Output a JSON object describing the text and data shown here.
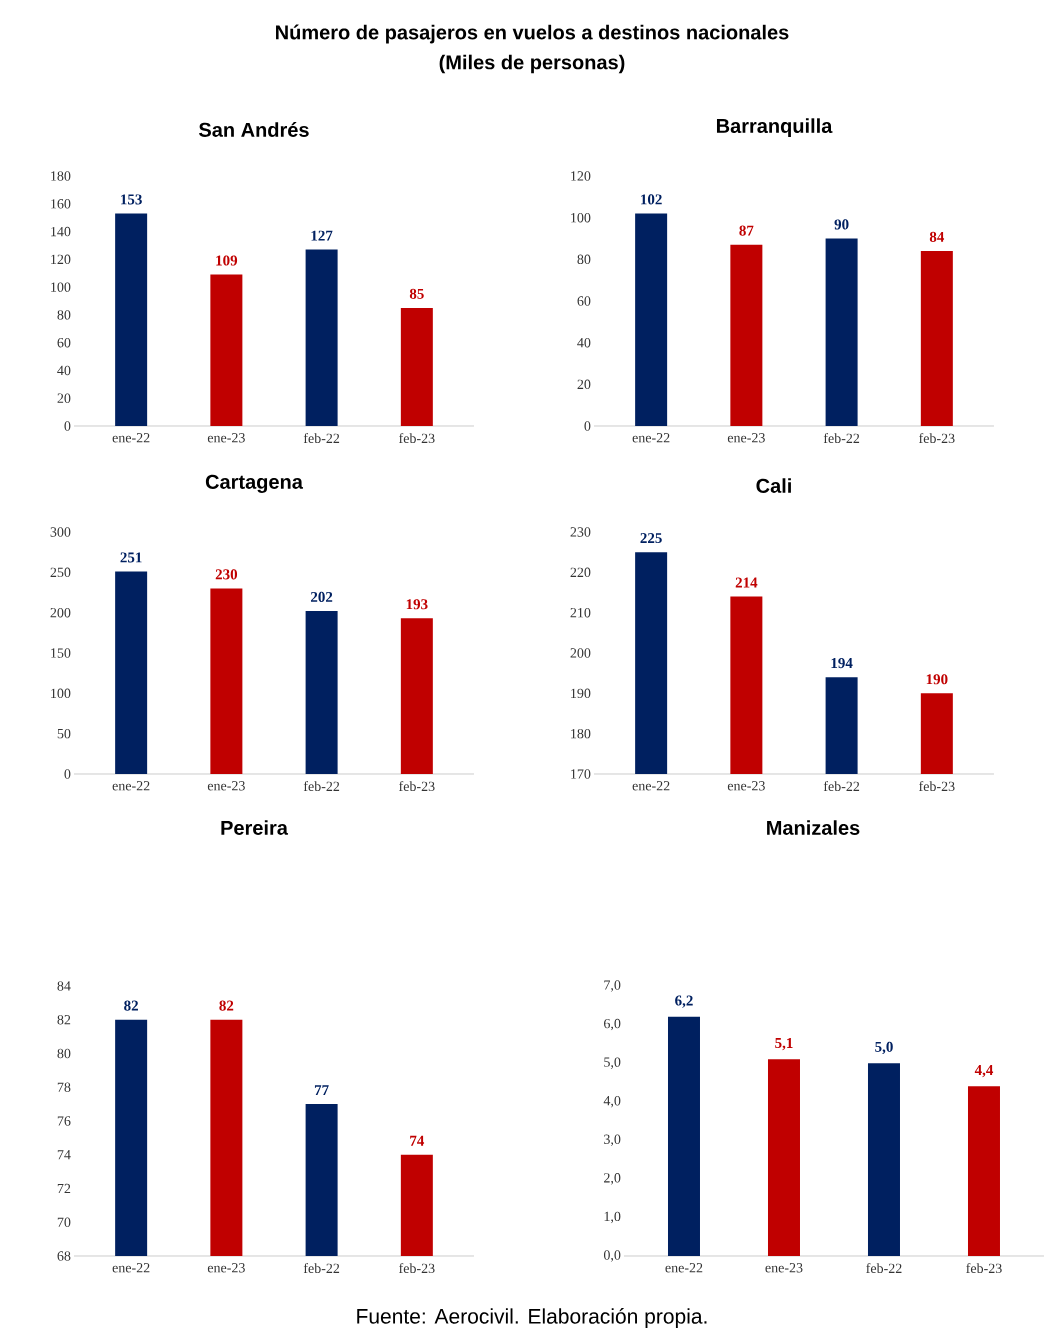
{
  "chart_data": [
    {
      "type": "other",
      "title": "Número de pasajeros en vuelos a destinos nacionales",
      "subtitle": "(Miles de personas)",
      "annotations": [
        "Fuente: Aerocivil. Elaboración propia."
      ]
    },
    {
      "type": "bar",
      "title": "San Andrés",
      "categories": [
        "ene-22",
        "ene-23",
        "feb-22",
        "feb-23"
      ],
      "values": [
        153,
        109,
        127,
        85
      ],
      "colors": [
        "#002060",
        "#c00000",
        "#002060",
        "#c00000"
      ],
      "value_labels": [
        "153",
        "109",
        "127",
        "85"
      ],
      "ylim": [
        0,
        180
      ],
      "yticks": [
        0,
        20,
        40,
        60,
        80,
        100,
        120,
        140,
        160,
        180
      ]
    },
    {
      "type": "bar",
      "title": "Barranquilla",
      "categories": [
        "ene-22",
        "ene-23",
        "feb-22",
        "feb-23"
      ],
      "values": [
        102,
        87,
        90,
        84
      ],
      "colors": [
        "#002060",
        "#c00000",
        "#002060",
        "#c00000"
      ],
      "value_labels": [
        "102",
        "87",
        "90",
        "84"
      ],
      "ylim": [
        0,
        120
      ],
      "yticks": [
        0,
        20,
        40,
        60,
        80,
        100,
        120
      ]
    },
    {
      "type": "bar",
      "title": "Cartagena",
      "categories": [
        "ene-22",
        "ene-23",
        "feb-22",
        "feb-23"
      ],
      "values": [
        251,
        230,
        202,
        193
      ],
      "colors": [
        "#002060",
        "#c00000",
        "#002060",
        "#c00000"
      ],
      "value_labels": [
        "251",
        "230",
        "202",
        "193"
      ],
      "ylim": [
        0,
        300
      ],
      "yticks": [
        0,
        50,
        100,
        150,
        200,
        250,
        300
      ]
    },
    {
      "type": "bar",
      "title": "Cali",
      "categories": [
        "ene-22",
        "ene-23",
        "feb-22",
        "feb-23"
      ],
      "values": [
        225,
        214,
        194,
        190
      ],
      "colors": [
        "#002060",
        "#c00000",
        "#002060",
        "#c00000"
      ],
      "value_labels": [
        "225",
        "214",
        "194",
        "190"
      ],
      "ylim": [
        170,
        230
      ],
      "yticks": [
        170,
        180,
        190,
        200,
        210,
        220,
        230
      ]
    },
    {
      "type": "bar",
      "title": "Pereira",
      "categories": [
        "ene-22",
        "ene-23",
        "feb-22",
        "feb-23"
      ],
      "values": [
        82,
        82,
        77,
        74
      ],
      "colors": [
        "#002060",
        "#c00000",
        "#002060",
        "#c00000"
      ],
      "value_labels": [
        "82",
        "82",
        "77",
        "74"
      ],
      "ylim": [
        68,
        84
      ],
      "yticks": [
        68,
        70,
        72,
        74,
        76,
        78,
        80,
        82,
        84
      ]
    },
    {
      "type": "bar",
      "title": "Manizales",
      "categories": [
        "ene-22",
        "ene-23",
        "feb-22",
        "feb-23"
      ],
      "values": [
        6.2,
        5.1,
        5.0,
        4.4
      ],
      "colors": [
        "#002060",
        "#c00000",
        "#002060",
        "#c00000"
      ],
      "value_labels": [
        "6,2",
        "5,1",
        "5,0",
        "4,4"
      ],
      "ylim": [
        0,
        7
      ],
      "yticks": [
        {
          "value": 0,
          "label": "0,0"
        },
        {
          "value": 1,
          "label": "1,0"
        },
        {
          "value": 2,
          "label": "2,0"
        },
        {
          "value": 3,
          "label": "3,0"
        },
        {
          "value": 4,
          "label": "4,0"
        },
        {
          "value": 5,
          "label": "5,0"
        },
        {
          "value": 6,
          "label": "6,0"
        },
        {
          "value": 7,
          "label": "7,0"
        }
      ]
    }
  ]
}
